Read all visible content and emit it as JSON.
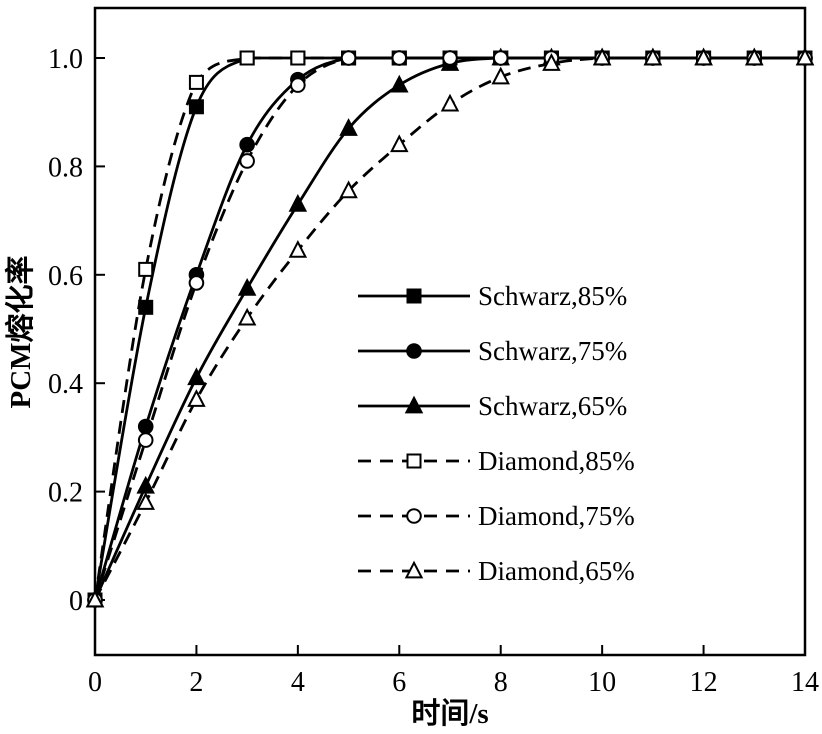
{
  "figure": {
    "background": "#ffffff",
    "ink_color": "#000000"
  },
  "chart_data": {
    "type": "line",
    "title": "",
    "xlabel": "时间/s",
    "ylabel": "PCM熔化率",
    "xlim": [
      0,
      14
    ],
    "ylim": [
      0,
      1.0
    ],
    "grid": false,
    "legend_position": "inside middle-right",
    "x_tick_labels": [
      "0",
      "2",
      "4",
      "6",
      "8",
      "10",
      "12",
      "14"
    ],
    "x_tick_values": [
      0,
      2,
      4,
      6,
      8,
      10,
      12,
      14
    ],
    "y_tick_labels": [
      "0",
      "0.2",
      "0.4",
      "0.6",
      "0.8",
      "1.0"
    ],
    "y_tick_values": [
      0,
      0.2,
      0.4,
      0.6,
      0.8,
      1.0
    ],
    "x": [
      0,
      1,
      2,
      3,
      4,
      5,
      6,
      7,
      8,
      9,
      10,
      11,
      12,
      13,
      14
    ],
    "series": [
      {
        "name": "Schwarz,85%",
        "line": "solid",
        "marker": "square",
        "marker_fill": "filled",
        "color": "#000000",
        "values": [
          0,
          0.54,
          0.91,
          1.0,
          1.0,
          1.0,
          1.0,
          1.0,
          1.0,
          1.0,
          1.0,
          1.0,
          1.0,
          1.0,
          1.0
        ]
      },
      {
        "name": "Schwarz,75%",
        "line": "solid",
        "marker": "circle",
        "marker_fill": "filled",
        "color": "#000000",
        "values": [
          0,
          0.32,
          0.6,
          0.84,
          0.96,
          1.0,
          1.0,
          1.0,
          1.0,
          1.0,
          1.0,
          1.0,
          1.0,
          1.0,
          1.0
        ]
      },
      {
        "name": "Schwarz,65%",
        "line": "solid",
        "marker": "triangle",
        "marker_fill": "filled",
        "color": "#000000",
        "values": [
          0,
          0.21,
          0.41,
          0.575,
          0.73,
          0.87,
          0.95,
          0.99,
          1.0,
          1.0,
          1.0,
          1.0,
          1.0,
          1.0,
          1.0
        ]
      },
      {
        "name": "Diamond,85%",
        "line": "dashed",
        "marker": "square",
        "marker_fill": "open",
        "color": "#000000",
        "values": [
          0,
          0.61,
          0.955,
          1.0,
          1.0,
          1.0,
          1.0,
          1.0,
          1.0,
          1.0,
          1.0,
          1.0,
          1.0,
          1.0,
          1.0
        ]
      },
      {
        "name": "Diamond,75%",
        "line": "dashed",
        "marker": "circle",
        "marker_fill": "open",
        "color": "#000000",
        "values": [
          0,
          0.295,
          0.585,
          0.81,
          0.95,
          1.0,
          1.0,
          1.0,
          1.0,
          1.0,
          1.0,
          1.0,
          1.0,
          1.0,
          1.0
        ]
      },
      {
        "name": "Diamond,65%",
        "line": "dashed",
        "marker": "triangle",
        "marker_fill": "open",
        "color": "#000000",
        "values": [
          0,
          0.18,
          0.37,
          0.52,
          0.645,
          0.755,
          0.84,
          0.915,
          0.965,
          0.99,
          1.0,
          1.0,
          1.0,
          1.0,
          1.0
        ]
      }
    ]
  }
}
